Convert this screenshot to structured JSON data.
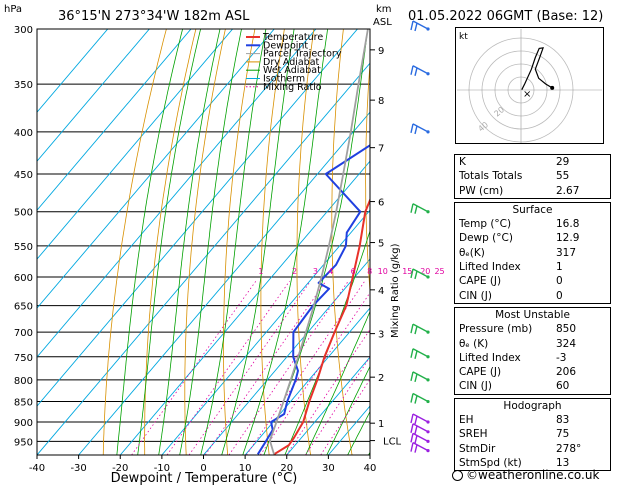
{
  "header": {
    "location": "36°15'N  273°34'W  182m  ASL",
    "datetime": "01.05.2022  06GMT  (Base: 12)",
    "hpa_label": "hPa",
    "km_label": "km",
    "asl_label": "ASL"
  },
  "axes": {
    "xlabel": "Dewpoint / Temperature (°C)",
    "mixing_label": "Mixing Ratio (g/kg)",
    "lcl_label": "LCL"
  },
  "legend": [
    "Temperature",
    "Dewpoint",
    "Parcel Trajectory",
    "Dry Adiabat",
    "Wet Adiabat",
    "Isotherm",
    "Mixing Ratio"
  ],
  "colors": {
    "temperature": "#e8312a",
    "dewpoint": "#2040e0",
    "parcel": "#a0a0a0",
    "dry_adiabat": "#d89000",
    "wet_adiabat": "#00a000",
    "isotherm": "#00a8e0",
    "mixing_ratio": "#e000a0"
  },
  "chart_data": {
    "type": "line",
    "pressure_ticks": [
      300,
      350,
      400,
      450,
      500,
      550,
      600,
      650,
      700,
      750,
      800,
      850,
      900,
      950
    ],
    "temp_ticks": [
      -40,
      -30,
      -20,
      -10,
      0,
      10,
      20,
      30,
      40
    ],
    "xlim": [
      -40,
      40
    ],
    "ylim": [
      1000,
      300
    ],
    "km_ticks": [
      {
        "km": "9",
        "p": 318
      },
      {
        "km": "8",
        "p": 366
      },
      {
        "km": "7",
        "p": 418
      },
      {
        "km": "6",
        "p": 486
      },
      {
        "km": "5",
        "p": 545
      },
      {
        "km": "4",
        "p": 622
      },
      {
        "km": "3",
        "p": 703
      },
      {
        "km": "2",
        "p": 794
      },
      {
        "km": "1",
        "p": 903
      },
      {
        "km": "LCL",
        "p": 948
      }
    ],
    "mixing_ratio_labels": [
      "1",
      "2",
      "3",
      "4",
      "6",
      "8",
      "10",
      "15",
      "20",
      "25"
    ],
    "mixing_ratio_values": [
      1,
      2,
      3,
      4,
      6,
      8,
      10,
      15,
      20,
      25
    ],
    "series": [
      {
        "name": "Temperature",
        "points": [
          [
            985,
            16.8
          ],
          [
            960,
            18.5
          ],
          [
            940,
            18.2
          ],
          [
            900,
            17.2
          ],
          [
            850,
            14.5
          ],
          [
            800,
            12.0
          ],
          [
            750,
            9.0
          ],
          [
            700,
            6.4
          ],
          [
            650,
            3.8
          ],
          [
            600,
            -0.5
          ],
          [
            550,
            -5.2
          ],
          [
            500,
            -10.8
          ],
          [
            450,
            -14.8
          ],
          [
            400,
            -20.5
          ],
          [
            350,
            -27.0
          ],
          [
            320,
            -29.5
          ],
          [
            300,
            -32.5
          ]
        ]
      },
      {
        "name": "Dewpoint",
        "points": [
          [
            985,
            12.9
          ],
          [
            950,
            12.2
          ],
          [
            920,
            11.5
          ],
          [
            900,
            9.5
          ],
          [
            880,
            11.0
          ],
          [
            850,
            9.2
          ],
          [
            800,
            6.8
          ],
          [
            780,
            5.5
          ],
          [
            750,
            1.5
          ],
          [
            700,
            -3.5
          ],
          [
            650,
            -4.2
          ],
          [
            620,
            -3.8
          ],
          [
            610,
            -7.5
          ],
          [
            580,
            -7.0
          ],
          [
            550,
            -8.5
          ],
          [
            530,
            -11.0
          ],
          [
            500,
            -12.0
          ],
          [
            450,
            -28.0
          ],
          [
            400,
            -21.0
          ],
          [
            370,
            -20.5
          ],
          [
            355,
            -25.5
          ],
          [
            345,
            -27.5
          ],
          [
            325,
            -18.5
          ],
          [
            300,
            -26.0
          ]
        ]
      },
      {
        "name": "Parcel Trajectory",
        "points": [
          [
            985,
            16.8
          ],
          [
            948,
            13.0
          ],
          [
            900,
            10.8
          ],
          [
            850,
            8.3
          ],
          [
            800,
            5.6
          ],
          [
            750,
            2.7
          ],
          [
            700,
            -0.5
          ],
          [
            650,
            -4.0
          ],
          [
            600,
            -8.0
          ],
          [
            550,
            -12.6
          ],
          [
            500,
            -17.8
          ],
          [
            450,
            -23.8
          ],
          [
            400,
            -30.6
          ],
          [
            350,
            -38.5
          ],
          [
            300,
            -47.5
          ]
        ]
      }
    ],
    "wind_barb_pressures": [
      300,
      340,
      400,
      500,
      600,
      700,
      750,
      800,
      850,
      900,
      925,
      950,
      975
    ]
  },
  "hodograph": {
    "unit_label": "kt",
    "ring_labels": [
      "40",
      "20"
    ],
    "points": [
      [
        0.3,
        0.1
      ],
      [
        1.5,
        2.5
      ],
      [
        4.0,
        8.0
      ],
      [
        5.5,
        12.5
      ],
      [
        7.0,
        16.0
      ],
      [
        8.5,
        16.2
      ],
      [
        7.0,
        12.0
      ],
      [
        5.5,
        8.0
      ],
      [
        6.8,
        4.5
      ],
      [
        9.5,
        2.3
      ],
      [
        12.0,
        0.8
      ]
    ]
  },
  "indices": [
    {
      "label": "K",
      "value": "29"
    },
    {
      "label": "Totals Totals",
      "value": "55"
    },
    {
      "label": "PW (cm)",
      "value": "2.67"
    }
  ],
  "surface": {
    "title": "Surface",
    "rows": [
      {
        "label": "Temp (°C)",
        "value": "16.8"
      },
      {
        "label": "Dewp (°C)",
        "value": "12.9"
      },
      {
        "label": "θₑ(K)",
        "value": "317"
      },
      {
        "label": "Lifted Index",
        "value": "1"
      },
      {
        "label": "CAPE (J)",
        "value": "0"
      },
      {
        "label": "CIN (J)",
        "value": "0"
      }
    ]
  },
  "most_unstable": {
    "title": "Most Unstable",
    "rows": [
      {
        "label": "Pressure (mb)",
        "value": "850"
      },
      {
        "label": "θₑ (K)",
        "value": "324"
      },
      {
        "label": "Lifted Index",
        "value": "-3"
      },
      {
        "label": "CAPE (J)",
        "value": "206"
      },
      {
        "label": "CIN (J)",
        "value": "60"
      }
    ]
  },
  "hodograph_box": {
    "title": "Hodograph",
    "rows": [
      {
        "label": "EH",
        "value": "83"
      },
      {
        "label": "SREH",
        "value": "75"
      },
      {
        "label": "StmDir",
        "value": "278°"
      },
      {
        "label": "StmSpd (kt)",
        "value": "13"
      }
    ]
  },
  "footer": {
    "copyright": "©weatheronline.co.uk"
  }
}
